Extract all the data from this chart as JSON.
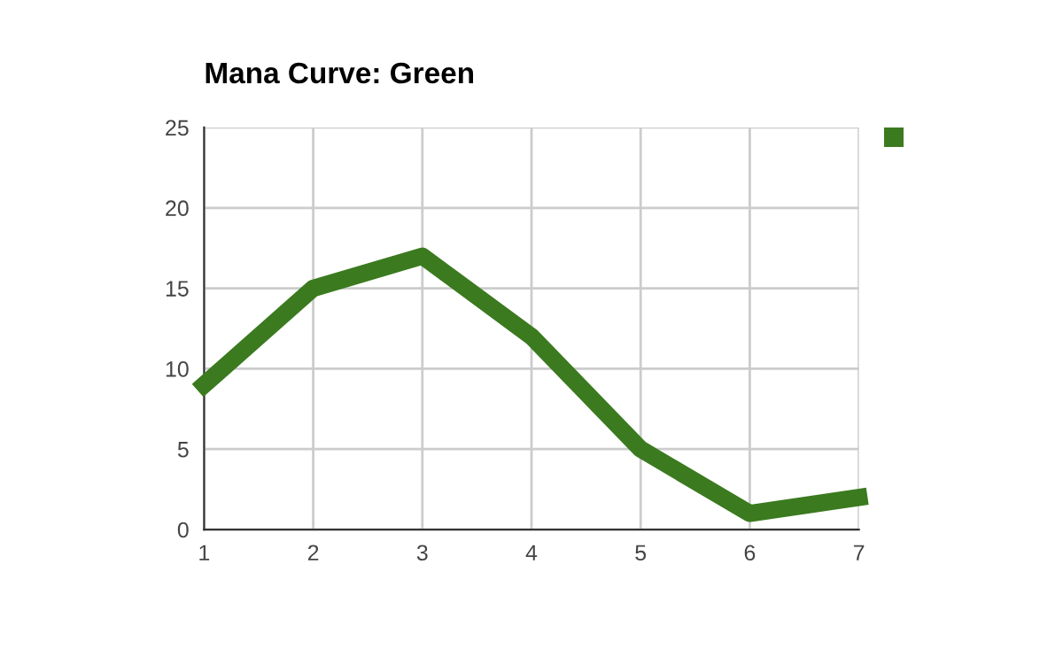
{
  "chart_data": {
    "type": "line",
    "title": "Mana Curve: Green",
    "x": [
      1,
      2,
      3,
      4,
      5,
      6,
      7
    ],
    "series": [
      {
        "color": "#3b7a1f",
        "values": [
          9,
          15,
          17,
          12,
          5,
          1,
          2
        ]
      }
    ],
    "xlim": [
      1,
      7
    ],
    "xticks": [
      1,
      2,
      3,
      4,
      5,
      6,
      7
    ],
    "ylim": [
      0,
      25
    ],
    "yticks": [
      0,
      5,
      10,
      15,
      20,
      25
    ],
    "grid": true,
    "marker": "none",
    "line_style": "solid"
  }
}
